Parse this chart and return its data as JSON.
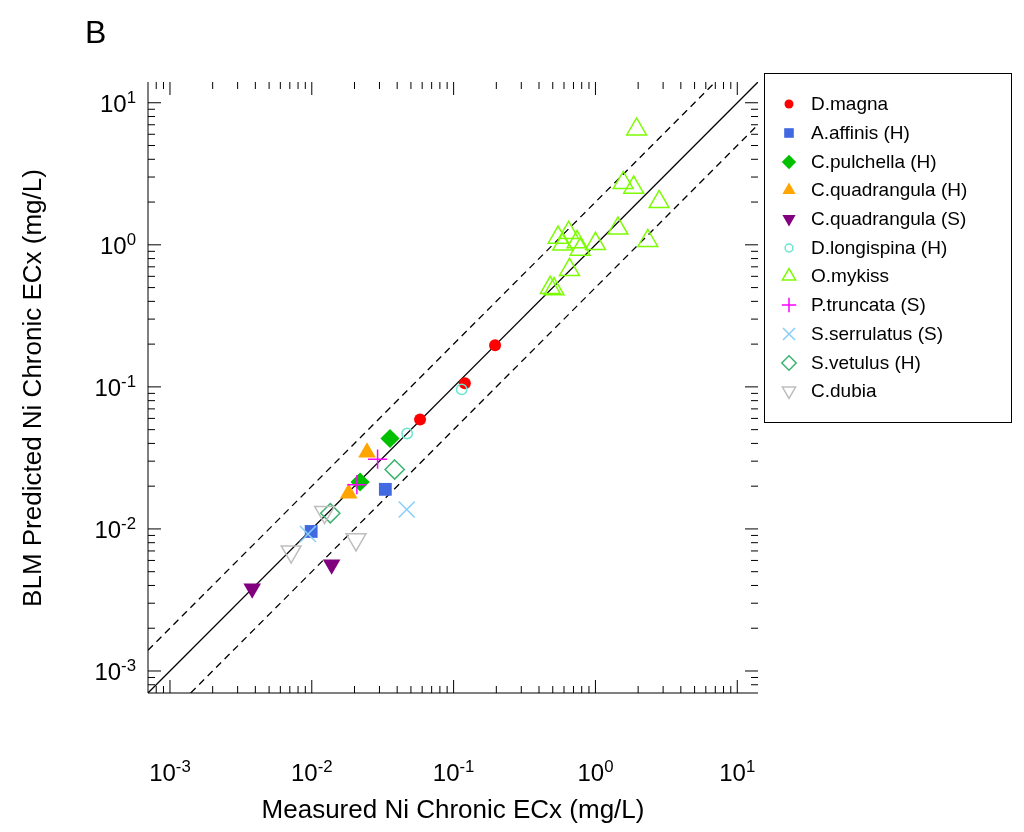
{
  "chart_data": {
    "type": "scatter",
    "title": "B",
    "xlabel": "Measured Ni Chronic ECx (mg/L)",
    "ylabel": "BLM Predicted Ni Chronic ECx (mg/L)",
    "log": "xy",
    "legend": "right",
    "xlim": [
      0.0007,
      14
    ],
    "ylim": [
      0.0007,
      14
    ],
    "xticks": [
      {
        "value": 0.0008,
        "label": null
      },
      {
        "value": 0.0009,
        "label": null
      },
      {
        "value": 0.001,
        "label": "10$^{-3}$"
      },
      {
        "value": 0.002,
        "label": null
      },
      {
        "value": 0.003,
        "label": null
      },
      {
        "value": 0.004,
        "label": null
      },
      {
        "value": 0.005,
        "label": null
      },
      {
        "value": 0.006,
        "label": null
      },
      {
        "value": 0.007,
        "label": null
      },
      {
        "value": 0.008,
        "label": null
      },
      {
        "value": 0.009,
        "label": null
      },
      {
        "value": 0.01,
        "label": "10$^{-2}$"
      },
      {
        "value": 0.02,
        "label": null
      },
      {
        "value": 0.03,
        "label": null
      },
      {
        "value": 0.04,
        "label": null
      },
      {
        "value": 0.05,
        "label": null
      },
      {
        "value": 0.06,
        "label": null
      },
      {
        "value": 0.07,
        "label": null
      },
      {
        "value": 0.08,
        "label": null
      },
      {
        "value": 0.09,
        "label": null
      },
      {
        "value": 0.1,
        "label": "10$^{-1}$"
      },
      {
        "value": 0.2,
        "label": null
      },
      {
        "value": 0.3,
        "label": null
      },
      {
        "value": 0.4,
        "label": null
      },
      {
        "value": 0.5,
        "label": null
      },
      {
        "value": 0.6,
        "label": null
      },
      {
        "value": 0.7,
        "label": null
      },
      {
        "value": 0.8,
        "label": null
      },
      {
        "value": 0.9,
        "label": null
      },
      {
        "value": 1,
        "label": "10$^{0}$"
      },
      {
        "value": 2,
        "label": null
      },
      {
        "value": 3,
        "label": null
      },
      {
        "value": 4,
        "label": null
      },
      {
        "value": 5,
        "label": null
      },
      {
        "value": 6,
        "label": null
      },
      {
        "value": 7,
        "label": null
      },
      {
        "value": 8,
        "label": null
      },
      {
        "value": 9,
        "label": null
      },
      {
        "value": 10,
        "label": "10$^{1}$"
      }
    ],
    "yticks": [
      {
        "value": 0.0008,
        "label": null
      },
      {
        "value": 0.0009,
        "label": null
      },
      {
        "value": 0.001,
        "label": "10$^{-3}$"
      },
      {
        "value": 0.002,
        "label": null
      },
      {
        "value": 0.003,
        "label": null
      },
      {
        "value": 0.004,
        "label": null
      },
      {
        "value": 0.005,
        "label": null
      },
      {
        "value": 0.006,
        "label": null
      },
      {
        "value": 0.007,
        "label": null
      },
      {
        "value": 0.008,
        "label": null
      },
      {
        "value": 0.009,
        "label": null
      },
      {
        "value": 0.01,
        "label": "10$^{-2}$"
      },
      {
        "value": 0.02,
        "label": null
      },
      {
        "value": 0.03,
        "label": null
      },
      {
        "value": 0.04,
        "label": null
      },
      {
        "value": 0.05,
        "label": null
      },
      {
        "value": 0.06,
        "label": null
      },
      {
        "value": 0.07,
        "label": null
      },
      {
        "value": 0.08,
        "label": null
      },
      {
        "value": 0.09,
        "label": null
      },
      {
        "value": 0.1,
        "label": "10$^{-1}$"
      },
      {
        "value": 0.2,
        "label": null
      },
      {
        "value": 0.3,
        "label": null
      },
      {
        "value": 0.4,
        "label": null
      },
      {
        "value": 0.5,
        "label": null
      },
      {
        "value": 0.6,
        "label": null
      },
      {
        "value": 0.7,
        "label": null
      },
      {
        "value": 0.8,
        "label": null
      },
      {
        "value": 0.9,
        "label": null
      },
      {
        "value": 1,
        "label": "10$^{0}$"
      },
      {
        "value": 2,
        "label": null
      },
      {
        "value": 3,
        "label": null
      },
      {
        "value": 4,
        "label": null
      },
      {
        "value": 5,
        "label": null
      },
      {
        "value": 6,
        "label": null
      },
      {
        "value": 7,
        "label": null
      },
      {
        "value": 8,
        "label": null
      },
      {
        "value": 9,
        "label": null
      },
      {
        "value": 10,
        "label": "10$^{1}$"
      }
    ],
    "series": [
      {
        "type": "line",
        "color": "#000000",
        "line_style": "solid",
        "x": [
          0.0007,
          14
        ],
        "values": [
          0.0007,
          14
        ]
      },
      {
        "type": "line",
        "color": "#000000",
        "line_style": "dashed",
        "x": [
          0.0007,
          7
        ],
        "values": [
          0.0014,
          14
        ]
      },
      {
        "type": "line",
        "color": "#000000",
        "line_style": "dashed",
        "x": [
          0.0014,
          14
        ],
        "values": [
          0.0007,
          7
        ]
      },
      {
        "name": "D.magna",
        "color": "#ff0000",
        "marker": "circle",
        "x": [
          0.058,
          0.12,
          0.196
        ],
        "values": [
          0.059,
          0.106,
          0.196
        ]
      },
      {
        "name": "A.affinis (H)",
        "color": "#4169e1",
        "marker": "square",
        "x": [
          0.0099,
          0.033
        ],
        "values": [
          0.0096,
          0.019
        ]
      },
      {
        "name": "C.pulchella (H)",
        "color": "#00c000",
        "marker": "diamond",
        "x": [
          0.0356,
          0.0219
        ],
        "values": [
          0.0433,
          0.0214
        ]
      },
      {
        "name": "C.quadrangula (H)",
        "color": "#ffa500",
        "marker": "triangle",
        "x": [
          0.0245,
          0.0182
        ],
        "values": [
          0.0346,
          0.0178
        ]
      },
      {
        "name": "C.quadrangula (S)",
        "color": "#800080",
        "marker": "triangle-down",
        "x": [
          0.0038,
          0.0138
        ],
        "values": [
          0.0038,
          0.0056
        ]
      },
      {
        "name": "D.longispina (H)",
        "color": "#66e8d0",
        "marker": "circle-open",
        "x": [
          0.047,
          0.114
        ],
        "values": [
          0.047,
          0.096
        ]
      },
      {
        "name": "O.mykiss",
        "color": "#7cfc00",
        "marker": "triangle-open",
        "x": [
          0.545,
          0.647,
          0.588,
          0.741,
          0.78,
          1.0,
          1.44,
          1.57,
          1.86,
          2.81,
          1.95,
          2.34,
          0.656,
          0.48,
          0.51
        ],
        "values": [
          1.13,
          1.22,
          1.01,
          1.05,
          0.93,
          1.02,
          1.31,
          2.74,
          2.54,
          2.01,
          6.52,
          1.07,
          0.67,
          0.5,
          0.49
        ]
      },
      {
        "name": "P.truncata (S)",
        "color": "#ff00ff",
        "marker": "plus",
        "x": [
          0.0291,
          0.0208
        ],
        "values": [
          0.031,
          0.0205
        ]
      },
      {
        "name": "S.serrulatus (S)",
        "color": "#87cefa",
        "marker": "x",
        "x": [
          0.0467,
          0.0094
        ],
        "values": [
          0.0137,
          0.0092
        ]
      },
      {
        "name": "S.vetulus (H)",
        "color": "#3cb371",
        "marker": "diamond-open",
        "x": [
          0.0384,
          0.0135
        ],
        "values": [
          0.0262,
          0.0129
        ]
      },
      {
        "name": "C.dubia",
        "color": "#bebebe",
        "marker": "triangle-down-open",
        "x": [
          0.0123,
          0.00715,
          0.0205
        ],
        "values": [
          0.0131,
          0.0069,
          0.0084
        ]
      }
    ]
  }
}
